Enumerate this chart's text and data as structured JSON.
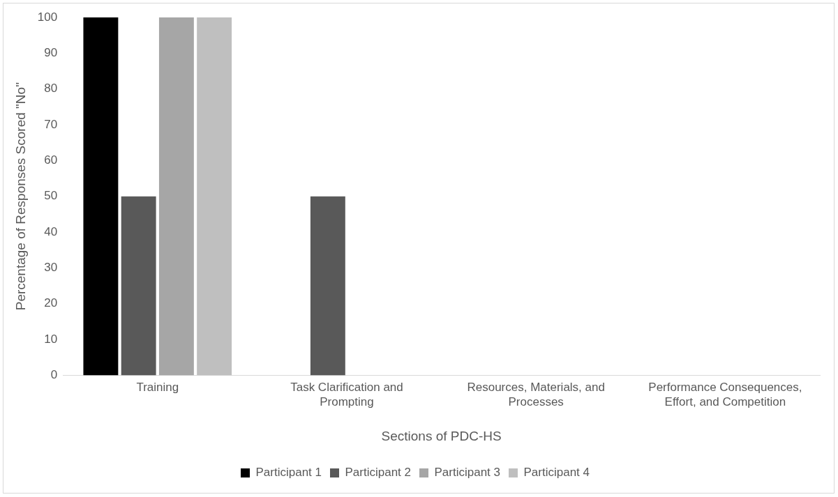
{
  "chart_data": {
    "type": "bar",
    "xlabel": "Sections of PDC-HS",
    "ylabel": "Percentage of Responses Scored \"No\"",
    "categories": [
      "Training",
      "Task Clarification and Prompting",
      "Resources, Materials, and Processes",
      "Performance Consequences, Effort, and Competition"
    ],
    "series": [
      {
        "name": "Participant 1",
        "color": "#000000",
        "values": [
          100,
          0,
          0,
          0
        ]
      },
      {
        "name": "Participant 2",
        "color": "#595959",
        "values": [
          50,
          50,
          0,
          0
        ]
      },
      {
        "name": "Participant 3",
        "color": "#a6a6a6",
        "values": [
          100,
          0,
          0,
          0
        ]
      },
      {
        "name": "Participant 4",
        "color": "#bfbfbf",
        "values": [
          100,
          0,
          0,
          0
        ]
      }
    ],
    "ylim": [
      0,
      100
    ],
    "yticks": [
      0,
      10,
      20,
      30,
      40,
      50,
      60,
      70,
      80,
      90,
      100
    ],
    "grid": false,
    "legend": "bottom"
  }
}
